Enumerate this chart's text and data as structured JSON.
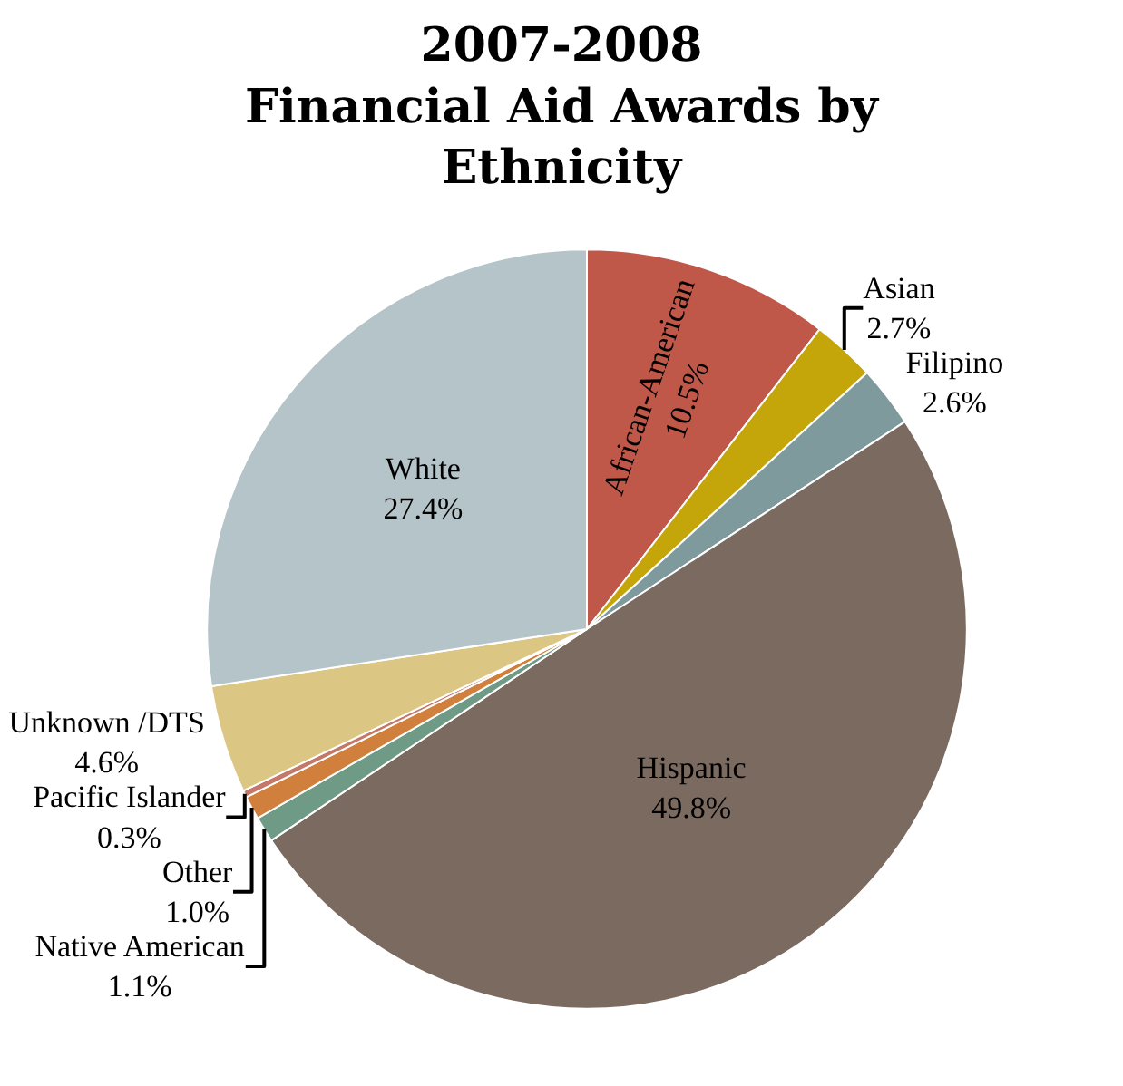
{
  "chart_data": {
    "type": "pie",
    "title": "2007-2008\nFinancial Aid Awards by\nEthnicity",
    "categories": [
      "African-American",
      "Asian",
      "Filipino",
      "Hispanic",
      "Native American",
      "Other",
      "Pacific Islander",
      "Unknown /DTS",
      "White"
    ],
    "values": [
      10.5,
      2.7,
      2.6,
      49.8,
      1.1,
      1.0,
      0.3,
      4.6,
      27.4
    ],
    "value_labels": [
      "10.5%",
      "2.7%",
      "2.6%",
      "49.8%",
      "1.1%",
      "1.0%",
      "0.3%",
      "4.6%",
      "27.4%"
    ],
    "colors": [
      "#c0584a",
      "#c4a50a",
      "#7f9a9c",
      "#7a6a60",
      "#6e9a86",
      "#d07f3c",
      "#c4786a",
      "#dcc684",
      "#b4c4c8"
    ],
    "legend": false
  }
}
